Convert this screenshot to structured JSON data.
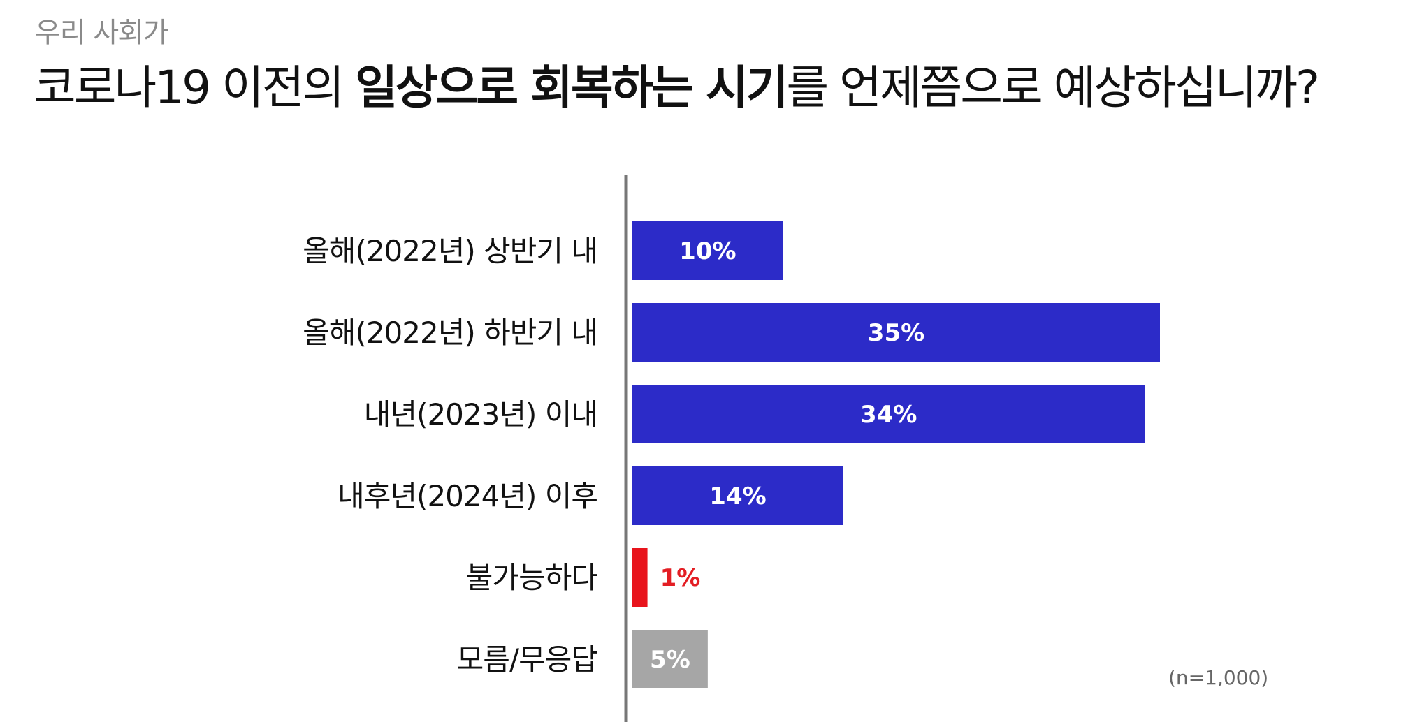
{
  "header": {
    "subtitle": "우리 사회가",
    "title_parts": [
      {
        "text": "코로나19 이전의 ",
        "bold": false
      },
      {
        "text": "일상으로 회복하는 시기",
        "bold": true
      },
      {
        "text": "를 언제쯤으로 예상하십니까?",
        "bold": false
      }
    ]
  },
  "chart_data": {
    "type": "bar",
    "orientation": "horizontal",
    "categories": [
      "올해(2022년) 상반기 내",
      "올해(2022년) 하반기 내",
      "내년(2023년) 이내",
      "내후년(2024년) 이후",
      "불가능하다",
      "모름/무응답"
    ],
    "values": [
      10,
      35,
      34,
      14,
      1,
      5
    ],
    "value_labels": [
      "10%",
      "35%",
      "34%",
      "14%",
      "1%",
      "5%"
    ],
    "bar_colors": [
      "#2c2bc8",
      "#2c2bc8",
      "#2c2bc8",
      "#2c2bc8",
      "#e8141c",
      "#a6a6a6"
    ],
    "label_colors": [
      "#ffffff",
      "#ffffff",
      "#ffffff",
      "#ffffff",
      "#e31e24",
      "#ffffff"
    ],
    "label_outside": [
      false,
      false,
      false,
      false,
      true,
      false
    ],
    "xlim": [
      0,
      35
    ],
    "grid": false,
    "axis_color": "#777777"
  },
  "note": "(n=1,000)"
}
